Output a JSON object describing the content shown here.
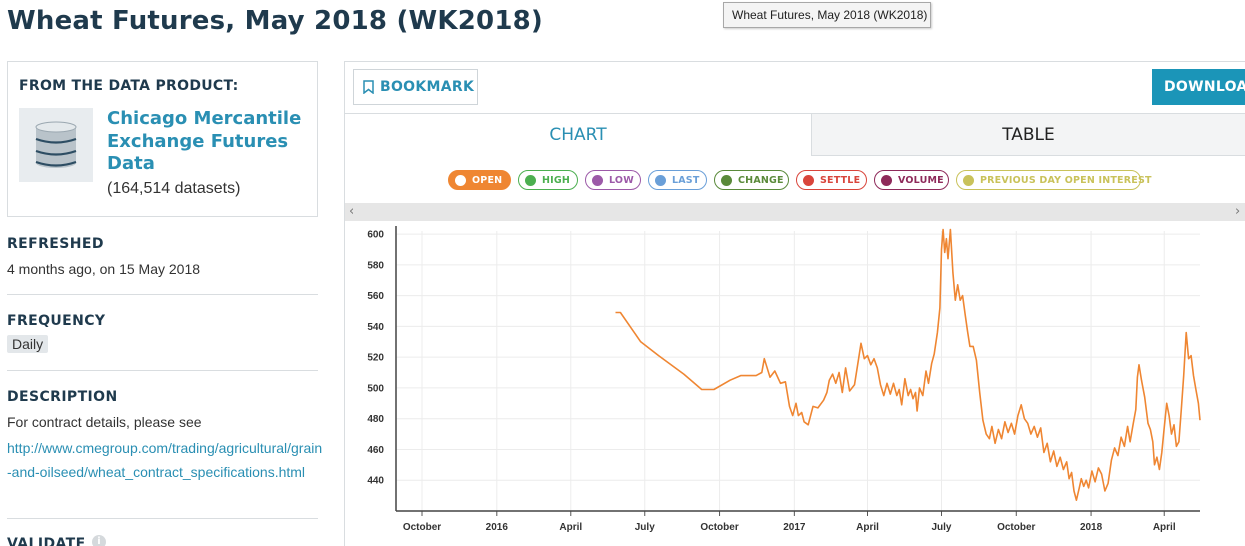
{
  "page": {
    "title": "Wheat Futures, May 2018 (WK2018)",
    "tooltip": "Wheat Futures, May 2018 (WK2018)"
  },
  "product": {
    "label": "FROM THE DATA PRODUCT:",
    "name": "Chicago Mercantile Exchange Futures Data",
    "count": "(164,514 datasets)",
    "icon": "database-icon"
  },
  "refreshed": {
    "heading": "REFRESHED",
    "value": "4 months ago, on 15 May 2018"
  },
  "frequency": {
    "heading": "FREQUENCY",
    "value": "Daily"
  },
  "description": {
    "heading": "DESCRIPTION",
    "text": "For contract details, please see",
    "link": "http://www.cmegroup.com/trading/agricultural/grain-and-oilseed/wheat_contract_specifications.html"
  },
  "validate": {
    "heading": "VALIDATE"
  },
  "toolbar": {
    "bookmark_label": "BOOKMARK",
    "download_label": "DOWNLOAD"
  },
  "tabs": [
    {
      "label": "CHART",
      "active": true
    },
    {
      "label": "TABLE",
      "active": false
    }
  ],
  "legend": [
    {
      "label": "OPEN",
      "color": "#ef8632",
      "active": true
    },
    {
      "label": "HIGH",
      "color": "#4caf50",
      "active": false
    },
    {
      "label": "LOW",
      "color": "#9c5aa8",
      "active": false
    },
    {
      "label": "LAST",
      "color": "#6a9fd8",
      "active": false
    },
    {
      "label": "CHANGE",
      "color": "#5a8a3a",
      "active": false
    },
    {
      "label": "SETTLE",
      "color": "#d9453b",
      "active": false
    },
    {
      "label": "VOLUME",
      "color": "#8e2a5a",
      "active": false
    },
    {
      "label": "PREVIOUS DAY OPEN INTEREST",
      "color": "#c9c25a",
      "active": false
    }
  ],
  "chart_data": {
    "type": "line",
    "xlabel": "",
    "ylabel": "",
    "ylim": [
      420,
      602
    ],
    "xlim": [
      "2015-08-30",
      "2018-05-15"
    ],
    "grid": true,
    "x_ticks": [
      {
        "date": "2015-10-01",
        "label": "October"
      },
      {
        "date": "2016-01-01",
        "label": "2016"
      },
      {
        "date": "2016-04-01",
        "label": "April"
      },
      {
        "date": "2016-07-01",
        "label": "July"
      },
      {
        "date": "2016-10-01",
        "label": "October"
      },
      {
        "date": "2017-01-01",
        "label": "2017"
      },
      {
        "date": "2017-04-01",
        "label": "April"
      },
      {
        "date": "2017-07-01",
        "label": "July"
      },
      {
        "date": "2017-10-01",
        "label": "October"
      },
      {
        "date": "2018-01-01",
        "label": "2018"
      },
      {
        "date": "2018-04-01",
        "label": "April"
      }
    ],
    "y_ticks": [
      440,
      460,
      480,
      500,
      520,
      540,
      560,
      580,
      600
    ],
    "series": [
      {
        "color": "#ef8632",
        "points": [
          [
            "2016-05-26",
            549
          ],
          [
            "2016-06-01",
            549
          ],
          [
            "2016-06-26",
            530
          ],
          [
            "2016-07-18",
            521
          ],
          [
            "2016-08-18",
            509
          ],
          [
            "2016-09-09",
            499
          ],
          [
            "2016-09-24",
            499
          ],
          [
            "2016-10-14",
            505
          ],
          [
            "2016-10-27",
            508
          ],
          [
            "2016-11-15",
            508
          ],
          [
            "2016-11-22",
            510
          ],
          [
            "2016-11-25",
            519
          ],
          [
            "2016-12-02",
            507
          ],
          [
            "2016-12-08",
            511
          ],
          [
            "2016-12-15",
            503
          ],
          [
            "2016-12-21",
            504
          ],
          [
            "2016-12-26",
            488
          ],
          [
            "2016-12-30",
            482
          ],
          [
            "2017-01-03",
            490
          ],
          [
            "2017-01-06",
            482
          ],
          [
            "2017-01-10",
            484
          ],
          [
            "2017-01-13",
            478
          ],
          [
            "2017-01-18",
            476
          ],
          [
            "2017-01-24",
            488
          ],
          [
            "2017-01-30",
            487
          ],
          [
            "2017-02-06",
            492
          ],
          [
            "2017-02-10",
            497
          ],
          [
            "2017-02-13",
            505
          ],
          [
            "2017-02-17",
            509
          ],
          [
            "2017-02-21",
            503
          ],
          [
            "2017-02-25",
            510
          ],
          [
            "2017-03-01",
            497
          ],
          [
            "2017-03-05",
            513
          ],
          [
            "2017-03-10",
            498
          ],
          [
            "2017-03-16",
            502
          ],
          [
            "2017-03-21",
            519
          ],
          [
            "2017-03-24",
            529
          ],
          [
            "2017-03-28",
            519
          ],
          [
            "2017-04-01",
            521
          ],
          [
            "2017-04-05",
            515
          ],
          [
            "2017-04-09",
            519
          ],
          [
            "2017-04-13",
            513
          ],
          [
            "2017-04-17",
            502
          ],
          [
            "2017-04-21",
            495
          ],
          [
            "2017-04-25",
            503
          ],
          [
            "2017-04-29",
            496
          ],
          [
            "2017-05-03",
            503
          ],
          [
            "2017-05-07",
            495
          ],
          [
            "2017-05-10",
            499
          ],
          [
            "2017-05-13",
            489
          ],
          [
            "2017-05-17",
            506
          ],
          [
            "2017-05-21",
            495
          ],
          [
            "2017-05-24",
            499
          ],
          [
            "2017-05-27",
            493
          ],
          [
            "2017-05-30",
            497
          ],
          [
            "2017-06-01",
            485
          ],
          [
            "2017-06-04",
            500
          ],
          [
            "2017-06-08",
            495
          ],
          [
            "2017-06-12",
            511
          ],
          [
            "2017-06-15",
            503
          ],
          [
            "2017-06-19",
            516
          ],
          [
            "2017-06-22",
            522
          ],
          [
            "2017-06-26",
            536
          ],
          [
            "2017-06-29",
            552
          ],
          [
            "2017-07-01",
            590
          ],
          [
            "2017-07-03",
            603
          ],
          [
            "2017-07-05",
            588
          ],
          [
            "2017-07-07",
            597
          ],
          [
            "2017-07-09",
            584
          ],
          [
            "2017-07-12",
            603
          ],
          [
            "2017-07-15",
            575
          ],
          [
            "2017-07-18",
            557
          ],
          [
            "2017-07-21",
            567
          ],
          [
            "2017-07-24",
            557
          ],
          [
            "2017-07-27",
            560
          ],
          [
            "2017-07-30",
            548
          ],
          [
            "2017-08-02",
            537
          ],
          [
            "2017-08-05",
            527
          ],
          [
            "2017-08-09",
            527
          ],
          [
            "2017-08-13",
            518
          ],
          [
            "2017-08-17",
            497
          ],
          [
            "2017-08-21",
            479
          ],
          [
            "2017-08-25",
            470
          ],
          [
            "2017-08-29",
            467
          ],
          [
            "2017-09-01",
            475
          ],
          [
            "2017-09-05",
            464
          ],
          [
            "2017-09-09",
            473
          ],
          [
            "2017-09-13",
            467
          ],
          [
            "2017-09-17",
            478
          ],
          [
            "2017-09-21",
            471
          ],
          [
            "2017-09-25",
            477
          ],
          [
            "2017-09-29",
            470
          ],
          [
            "2017-10-03",
            482
          ],
          [
            "2017-10-07",
            489
          ],
          [
            "2017-10-11",
            480
          ],
          [
            "2017-10-15",
            477
          ],
          [
            "2017-10-19",
            470
          ],
          [
            "2017-10-23",
            475
          ],
          [
            "2017-10-27",
            468
          ],
          [
            "2017-10-31",
            474
          ],
          [
            "2017-11-04",
            458
          ],
          [
            "2017-11-08",
            464
          ],
          [
            "2017-11-12",
            452
          ],
          [
            "2017-11-16",
            459
          ],
          [
            "2017-11-20",
            449
          ],
          [
            "2017-11-24",
            455
          ],
          [
            "2017-11-28",
            447
          ],
          [
            "2017-12-02",
            452
          ],
          [
            "2017-12-05",
            441
          ],
          [
            "2017-12-08",
            445
          ],
          [
            "2017-12-11",
            433
          ],
          [
            "2017-12-14",
            427
          ],
          [
            "2017-12-17",
            434
          ],
          [
            "2017-12-20",
            441
          ],
          [
            "2017-12-23",
            436
          ],
          [
            "2017-12-26",
            440
          ],
          [
            "2017-12-29",
            435
          ],
          [
            "2018-01-02",
            446
          ],
          [
            "2018-01-06",
            439
          ],
          [
            "2018-01-10",
            448
          ],
          [
            "2018-01-14",
            444
          ],
          [
            "2018-01-18",
            433
          ],
          [
            "2018-01-22",
            438
          ],
          [
            "2018-01-26",
            453
          ],
          [
            "2018-01-30",
            461
          ],
          [
            "2018-02-03",
            456
          ],
          [
            "2018-02-07",
            468
          ],
          [
            "2018-02-11",
            462
          ],
          [
            "2018-02-15",
            475
          ],
          [
            "2018-02-18",
            465
          ],
          [
            "2018-02-22",
            477
          ],
          [
            "2018-02-25",
            486
          ],
          [
            "2018-02-27",
            507
          ],
          [
            "2018-03-01",
            515
          ],
          [
            "2018-03-04",
            505
          ],
          [
            "2018-03-08",
            494
          ],
          [
            "2018-03-12",
            477
          ],
          [
            "2018-03-15",
            473
          ],
          [
            "2018-03-18",
            465
          ],
          [
            "2018-03-20",
            450
          ],
          [
            "2018-03-23",
            455
          ],
          [
            "2018-03-26",
            447
          ],
          [
            "2018-03-29",
            458
          ],
          [
            "2018-04-01",
            474
          ],
          [
            "2018-04-04",
            490
          ],
          [
            "2018-04-07",
            482
          ],
          [
            "2018-04-10",
            470
          ],
          [
            "2018-04-13",
            476
          ],
          [
            "2018-04-16",
            462
          ],
          [
            "2018-04-19",
            465
          ],
          [
            "2018-04-22",
            486
          ],
          [
            "2018-04-25",
            508
          ],
          [
            "2018-04-28",
            536
          ],
          [
            "2018-05-01",
            519
          ],
          [
            "2018-05-04",
            521
          ],
          [
            "2018-05-07",
            508
          ],
          [
            "2018-05-10",
            499
          ],
          [
            "2018-05-13",
            490
          ],
          [
            "2018-05-15",
            479
          ]
        ]
      }
    ]
  }
}
